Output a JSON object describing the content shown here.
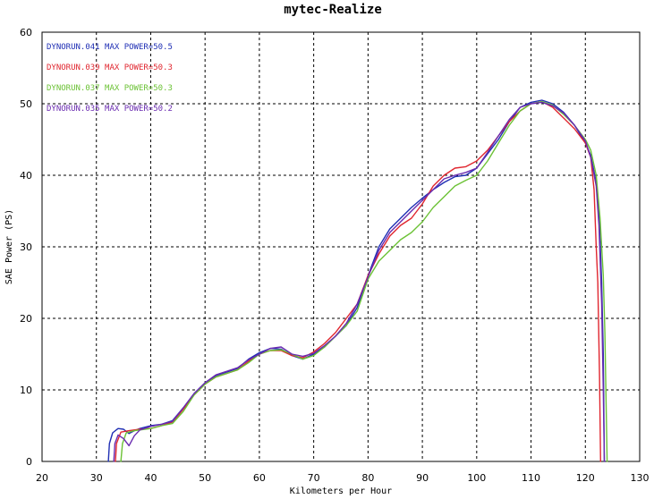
{
  "chart_data": {
    "type": "line",
    "title": "mytec-Realize",
    "xlabel": "Kilometers per Hour",
    "ylabel": "SAE Power (PS)",
    "xlim": [
      20,
      130
    ],
    "ylim": [
      0,
      60
    ],
    "x_ticks": [
      "20",
      "30",
      "40",
      "50",
      "60",
      "70",
      "80",
      "90",
      "100",
      "110",
      "120",
      "130"
    ],
    "y_ticks": [
      "0",
      "10",
      "20",
      "30",
      "40",
      "50",
      "60"
    ],
    "grid": true,
    "legend_position": "top-left",
    "series": [
      {
        "name": "DYNORUN.041",
        "legend": "DYNORUN.041  MAX POWER=50.5",
        "color": "#1f2fb4",
        "points": [
          [
            32.2,
            0
          ],
          [
            32.4,
            2.5
          ],
          [
            33,
            4.0
          ],
          [
            34,
            4.6
          ],
          [
            35,
            4.5
          ],
          [
            36,
            3.9
          ],
          [
            37,
            4.3
          ],
          [
            38,
            4.6
          ],
          [
            40,
            5.0
          ],
          [
            42,
            5.2
          ],
          [
            44,
            5.7
          ],
          [
            46,
            7.5
          ],
          [
            48,
            9.5
          ],
          [
            50,
            11.0
          ],
          [
            52,
            12.0
          ],
          [
            54,
            12.5
          ],
          [
            56,
            13.0
          ],
          [
            58,
            14.3
          ],
          [
            60,
            15.2
          ],
          [
            62,
            15.8
          ],
          [
            64,
            15.7
          ],
          [
            66,
            14.8
          ],
          [
            68,
            14.3
          ],
          [
            70,
            15.0
          ],
          [
            72,
            16.0
          ],
          [
            74,
            17.5
          ],
          [
            76,
            19.0
          ],
          [
            78,
            21.5
          ],
          [
            80,
            26.0
          ],
          [
            82,
            30.0
          ],
          [
            84,
            32.5
          ],
          [
            86,
            34.0
          ],
          [
            88,
            35.5
          ],
          [
            90,
            36.8
          ],
          [
            92,
            38.0
          ],
          [
            94,
            39.0
          ],
          [
            96,
            39.8
          ],
          [
            98,
            40.0
          ],
          [
            100,
            41.0
          ],
          [
            102,
            43.0
          ],
          [
            104,
            45.0
          ],
          [
            106,
            47.5
          ],
          [
            108,
            49.5
          ],
          [
            110,
            50.2
          ],
          [
            112,
            50.5
          ],
          [
            114,
            50.0
          ],
          [
            116,
            48.8
          ],
          [
            118,
            47.0
          ],
          [
            120,
            44.5
          ],
          [
            121,
            42.8
          ],
          [
            122,
            39.0
          ],
          [
            122.6,
            33.0
          ],
          [
            123,
            25.0
          ],
          [
            123.3,
            15.0
          ],
          [
            123.5,
            0
          ]
        ]
      },
      {
        "name": "DYNORUN.039",
        "legend": "DYNORUN.039  MAX POWER=50.3",
        "color": "#e0262f",
        "points": [
          [
            33.5,
            0
          ],
          [
            33.7,
            2.5
          ],
          [
            34.5,
            4.1
          ],
          [
            36,
            4.3
          ],
          [
            38,
            4.5
          ],
          [
            40,
            4.6
          ],
          [
            42,
            5.0
          ],
          [
            44,
            5.5
          ],
          [
            46,
            7.3
          ],
          [
            48,
            9.3
          ],
          [
            50,
            10.8
          ],
          [
            52,
            11.8
          ],
          [
            54,
            12.3
          ],
          [
            56,
            12.8
          ],
          [
            58,
            14.0
          ],
          [
            60,
            15.0
          ],
          [
            62,
            15.5
          ],
          [
            64,
            15.5
          ],
          [
            66,
            14.8
          ],
          [
            68,
            14.5
          ],
          [
            70,
            15.3
          ],
          [
            72,
            16.5
          ],
          [
            74,
            18.0
          ],
          [
            76,
            20.0
          ],
          [
            78,
            22.0
          ],
          [
            80,
            26.0
          ],
          [
            82,
            29.0
          ],
          [
            84,
            31.5
          ],
          [
            86,
            33.0
          ],
          [
            88,
            34.0
          ],
          [
            90,
            36.0
          ],
          [
            92,
            38.5
          ],
          [
            94,
            40.0
          ],
          [
            96,
            41.0
          ],
          [
            98,
            41.2
          ],
          [
            100,
            42.0
          ],
          [
            102,
            43.5
          ],
          [
            104,
            45.5
          ],
          [
            106,
            47.5
          ],
          [
            108,
            49.0
          ],
          [
            110,
            50.0
          ],
          [
            112,
            50.3
          ],
          [
            114,
            49.5
          ],
          [
            116,
            48.0
          ],
          [
            118,
            46.5
          ],
          [
            120,
            44.5
          ],
          [
            121,
            42.5
          ],
          [
            121.6,
            38.0
          ],
          [
            122,
            30.0
          ],
          [
            122.3,
            25.0
          ],
          [
            122.6,
            12.0
          ],
          [
            122.8,
            0
          ]
        ]
      },
      {
        "name": "DYNORUN.037",
        "legend": "DYNORUN.037  MAX POWER=50.3",
        "color": "#6cc236",
        "points": [
          [
            34.5,
            0
          ],
          [
            34.8,
            2.5
          ],
          [
            35.5,
            4.0
          ],
          [
            37,
            4.3
          ],
          [
            38,
            4.4
          ],
          [
            40,
            4.6
          ],
          [
            42,
            5.0
          ],
          [
            44,
            5.3
          ],
          [
            46,
            7.0
          ],
          [
            48,
            9.3
          ],
          [
            50,
            10.8
          ],
          [
            52,
            11.8
          ],
          [
            54,
            12.3
          ],
          [
            56,
            12.8
          ],
          [
            58,
            13.8
          ],
          [
            60,
            15.0
          ],
          [
            62,
            15.5
          ],
          [
            64,
            15.6
          ],
          [
            66,
            15.0
          ],
          [
            68,
            14.3
          ],
          [
            70,
            14.8
          ],
          [
            72,
            16.0
          ],
          [
            74,
            17.5
          ],
          [
            76,
            19.0
          ],
          [
            78,
            21.0
          ],
          [
            80,
            25.5
          ],
          [
            82,
            28.0
          ],
          [
            84,
            29.5
          ],
          [
            86,
            31.0
          ],
          [
            88,
            32.0
          ],
          [
            90,
            33.5
          ],
          [
            92,
            35.5
          ],
          [
            94,
            37.0
          ],
          [
            96,
            38.5
          ],
          [
            98,
            39.3
          ],
          [
            100,
            40.0
          ],
          [
            102,
            42.0
          ],
          [
            104,
            44.5
          ],
          [
            106,
            47.0
          ],
          [
            108,
            49.0
          ],
          [
            110,
            50.0
          ],
          [
            112,
            50.3
          ],
          [
            114,
            49.8
          ],
          [
            116,
            48.5
          ],
          [
            118,
            47.0
          ],
          [
            120,
            45.0
          ],
          [
            121,
            43.5
          ],
          [
            122,
            40.0
          ],
          [
            122.7,
            34.0
          ],
          [
            123.3,
            26.0
          ],
          [
            123.6,
            18.0
          ],
          [
            124,
            0
          ]
        ]
      },
      {
        "name": "DYNORUN.035",
        "legend": "DYNORUN.035  MAX POWER=50.2",
        "color": "#6a2bb0",
        "points": [
          [
            33.2,
            0
          ],
          [
            33.4,
            2.5
          ],
          [
            34,
            3.7
          ],
          [
            35,
            3.2
          ],
          [
            36,
            2.2
          ],
          [
            37,
            3.6
          ],
          [
            38,
            4.4
          ],
          [
            40,
            4.9
          ],
          [
            42,
            5.2
          ],
          [
            44,
            5.6
          ],
          [
            46,
            7.5
          ],
          [
            48,
            9.5
          ],
          [
            50,
            11.0
          ],
          [
            52,
            12.1
          ],
          [
            54,
            12.6
          ],
          [
            56,
            13.1
          ],
          [
            58,
            14.2
          ],
          [
            60,
            15.0
          ],
          [
            62,
            15.8
          ],
          [
            64,
            16.0
          ],
          [
            66,
            15.0
          ],
          [
            68,
            14.7
          ],
          [
            70,
            15.1
          ],
          [
            72,
            16.2
          ],
          [
            74,
            17.5
          ],
          [
            76,
            19.3
          ],
          [
            78,
            22.0
          ],
          [
            80,
            25.8
          ],
          [
            82,
            29.5
          ],
          [
            84,
            32.0
          ],
          [
            86,
            33.5
          ],
          [
            88,
            35.0
          ],
          [
            90,
            36.5
          ],
          [
            92,
            38.0
          ],
          [
            94,
            39.5
          ],
          [
            96,
            40.0
          ],
          [
            98,
            40.4
          ],
          [
            100,
            41.0
          ],
          [
            102,
            43.2
          ],
          [
            104,
            45.5
          ],
          [
            106,
            47.8
          ],
          [
            108,
            49.5
          ],
          [
            110,
            50.0
          ],
          [
            112,
            50.2
          ],
          [
            114,
            49.7
          ],
          [
            116,
            48.7
          ],
          [
            118,
            47.0
          ],
          [
            120,
            44.8
          ],
          [
            121,
            42.5
          ],
          [
            122,
            38.5
          ],
          [
            122.5,
            33.0
          ],
          [
            123,
            22.0
          ],
          [
            123.3,
            10.0
          ],
          [
            123.5,
            0
          ]
        ]
      }
    ]
  }
}
